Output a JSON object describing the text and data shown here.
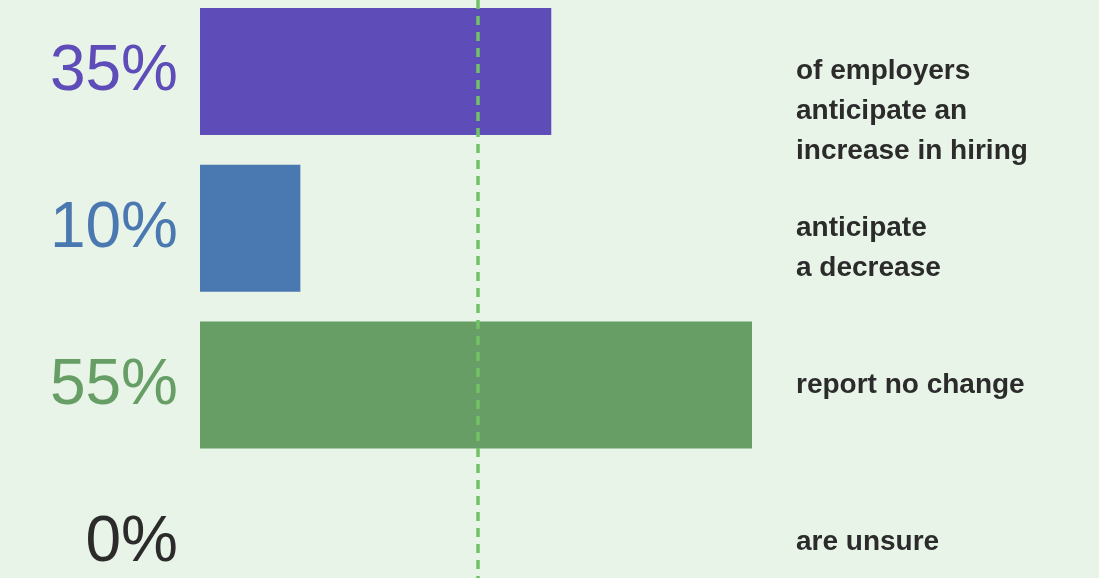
{
  "chart_data": {
    "type": "bar",
    "orientation": "horizontal",
    "value_labels": [
      "35%",
      "10%",
      "55%",
      "0%"
    ],
    "categories": [
      "of employers\nanticipate an\nincrease in hiring",
      "anticipate\na decrease",
      "report no change",
      "are unsure"
    ],
    "values": [
      35,
      10,
      55,
      0
    ],
    "colors": [
      "#5e4db8",
      "#4a78b0",
      "#679e65",
      "#2b2b2b"
    ],
    "ref_lines": [
      {
        "axis": "x",
        "value": 27.7,
        "color": "#72c267",
        "line_style": "dashed"
      }
    ]
  }
}
